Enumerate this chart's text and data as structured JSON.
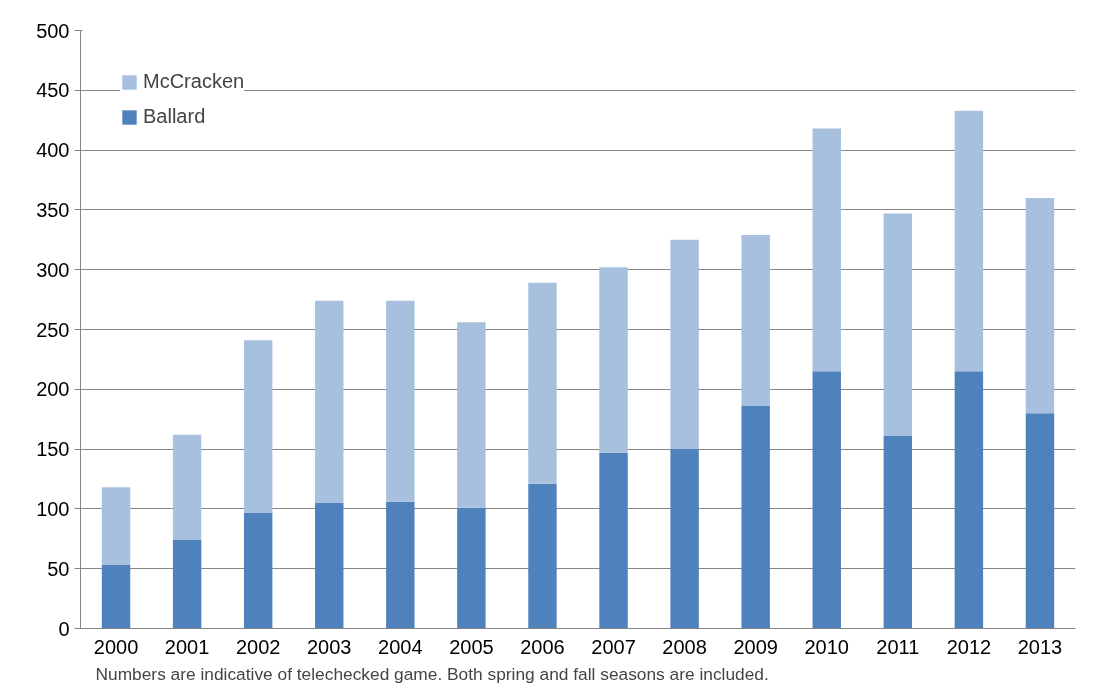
{
  "chart_data": {
    "type": "bar",
    "stacked": true,
    "categories": [
      "2000",
      "2001",
      "2002",
      "2003",
      "2004",
      "2005",
      "2006",
      "2007",
      "2008",
      "2009",
      "2010",
      "2011",
      "2012",
      "2013"
    ],
    "series": [
      {
        "name": "Ballard",
        "color": "#4f81bd",
        "values": [
          53,
          74,
          97,
          105,
          106,
          101,
          121,
          147,
          150,
          186,
          215,
          161,
          215,
          180
        ]
      },
      {
        "name": "McCracken",
        "color": "#a7c0de",
        "values": [
          65,
          88,
          144,
          169,
          168,
          155,
          168,
          155,
          175,
          143,
          203,
          186,
          218,
          180
        ]
      }
    ],
    "ylim": [
      0,
      500
    ],
    "yticks": [
      0,
      50,
      100,
      150,
      200,
      250,
      300,
      350,
      400,
      450,
      500
    ],
    "grid": "y",
    "legend": "top left",
    "annotations": [
      "Numbers are indicative of telechecked game. Both spring and fall seasons are included."
    ]
  }
}
